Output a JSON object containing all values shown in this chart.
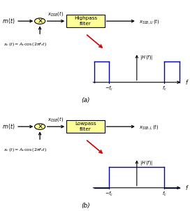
{
  "fig_width": 2.72,
  "fig_height": 3.02,
  "dpi": 100,
  "bg_color": "#ffffff",
  "filter_fill": "#ffff99",
  "filter_edge": "#000000",
  "plot_line_color": "#0000aa",
  "arrow_color": "#cc0000",
  "sections": [
    {
      "label": "(a)",
      "filter_label": "Highpass\nfilter",
      "output_label": "x_{SSB,U}",
      "filter_shape": "highpass"
    },
    {
      "label": "(b)",
      "filter_label": "Lowpass\nfilter",
      "output_label": "x_{SSB,L}",
      "filter_shape": "lowpass"
    }
  ]
}
